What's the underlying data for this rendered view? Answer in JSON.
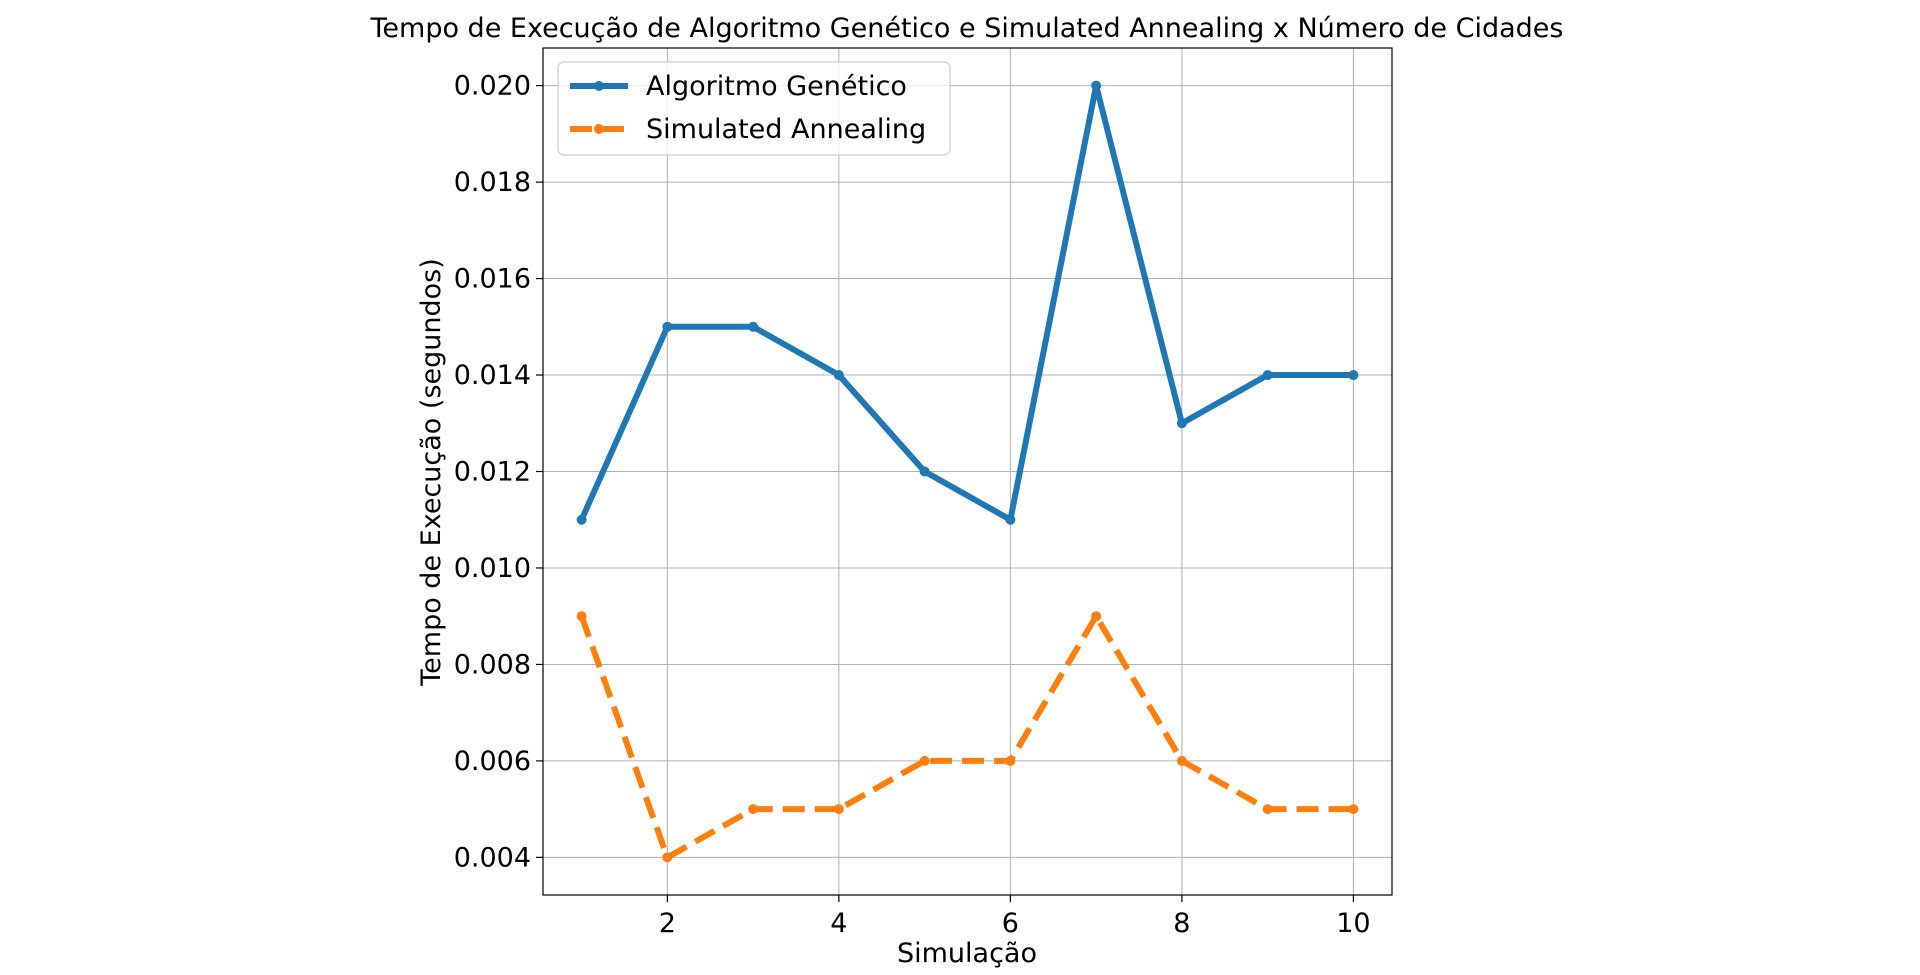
{
  "chart_data": {
    "type": "line",
    "title": "Tempo de Execução de Algoritmo Genético e Simulated Annealing x Número de Cidades",
    "xlabel": "Simulação",
    "ylabel": "Tempo de Execução (segundos)",
    "x": [
      1,
      2,
      3,
      4,
      5,
      6,
      7,
      8,
      9,
      10
    ],
    "xlim": [
      0.55,
      10.45
    ],
    "ylim": [
      0.00322,
      0.02078
    ],
    "xticks": [
      2,
      4,
      6,
      8,
      10
    ],
    "xtick_labels": [
      "2",
      "4",
      "6",
      "8",
      "10"
    ],
    "yticks": [
      0.004,
      0.006,
      0.008,
      0.01,
      0.012,
      0.014,
      0.016,
      0.018,
      0.02
    ],
    "ytick_labels": [
      "0.004",
      "0.006",
      "0.008",
      "0.010",
      "0.012",
      "0.014",
      "0.016",
      "0.018",
      "0.020"
    ],
    "grid": true,
    "legend_position": "top-left",
    "series": [
      {
        "name": "Algoritmo Genético",
        "values": [
          0.011,
          0.015,
          0.015,
          0.014,
          0.012,
          0.011,
          0.02,
          0.013,
          0.014,
          0.014
        ],
        "color": "#1f77b4",
        "style": "solid"
      },
      {
        "name": "Simulated Annealing",
        "values": [
          0.009,
          0.004,
          0.005,
          0.005,
          0.006,
          0.006,
          0.009,
          0.006,
          0.005,
          0.005
        ],
        "color": "#ff7f0e",
        "style": "dashed"
      }
    ]
  }
}
